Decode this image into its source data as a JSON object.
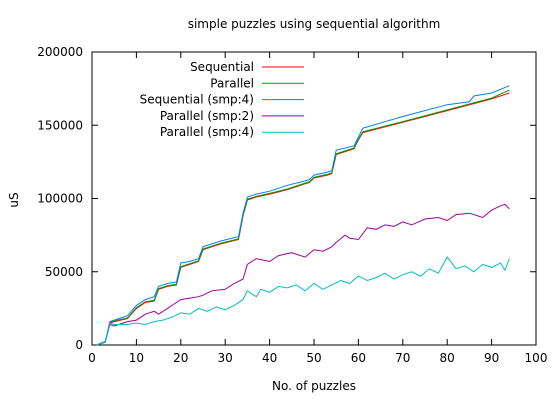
{
  "chart_data": {
    "type": "line",
    "title": "simple puzzles using sequential algorithm",
    "xlabel": "No. of puzzles",
    "ylabel": "uS",
    "xlim": [
      0,
      100
    ],
    "ylim": [
      0,
      200000
    ],
    "xticks": [
      "0",
      "10",
      "20",
      "30",
      "40",
      "50",
      "60",
      "70",
      "80",
      "90",
      "100"
    ],
    "yticks": [
      "0",
      "50000",
      "100000",
      "150000",
      "200000"
    ],
    "grid": false,
    "legend": "top-left",
    "series": [
      {
        "name": "Sequential",
        "color": "#ff0000",
        "x": [
          1,
          3,
          4,
          5,
          8,
          10,
          12,
          14,
          15,
          17,
          19,
          20,
          22,
          24,
          25,
          27,
          29,
          33,
          34,
          35,
          37,
          40,
          44,
          48,
          49,
          50,
          53,
          54,
          55,
          59,
          60,
          61,
          70,
          80,
          90,
          94
        ],
        "y": [
          0,
          2000,
          15000,
          16000,
          18000,
          25000,
          29000,
          30000,
          38000,
          40000,
          41000,
          53000,
          55000,
          57000,
          65000,
          67000,
          69000,
          72000,
          88000,
          99000,
          101000,
          103000,
          106000,
          110000,
          111000,
          114000,
          116000,
          117000,
          130000,
          134000,
          140000,
          145000,
          152000,
          160000,
          168000,
          172000
        ]
      },
      {
        "name": "Parallel",
        "color": "#00a000",
        "x": [
          1,
          3,
          4,
          5,
          8,
          10,
          12,
          14,
          15,
          17,
          19,
          20,
          22,
          24,
          25,
          27,
          29,
          33,
          34,
          35,
          37,
          40,
          44,
          48,
          49,
          50,
          53,
          54,
          55,
          59,
          60,
          61,
          70,
          80,
          90,
          94
        ],
        "y": [
          0,
          2000,
          15500,
          16500,
          18500,
          25500,
          29500,
          30500,
          38500,
          40500,
          41500,
          53500,
          55500,
          57500,
          65500,
          67500,
          69500,
          72500,
          88500,
          99500,
          101500,
          103500,
          106500,
          110500,
          111500,
          114500,
          116500,
          117500,
          130500,
          134500,
          140500,
          145500,
          152500,
          160500,
          168500,
          174000
        ]
      },
      {
        "name": "Sequential (smp:4)",
        "color": "#0080ff",
        "x": [
          1,
          3,
          4,
          5,
          8,
          10,
          12,
          14,
          15,
          17,
          19,
          20,
          22,
          24,
          25,
          27,
          29,
          33,
          34,
          35,
          37,
          40,
          44,
          48,
          49,
          50,
          53,
          54,
          55,
          59,
          60,
          61,
          70,
          80,
          85,
          86,
          90,
          94
        ],
        "y": [
          0,
          2500,
          16000,
          17000,
          20000,
          27000,
          31000,
          33000,
          40000,
          42000,
          43000,
          56000,
          57000,
          59000,
          67000,
          69000,
          71000,
          74000,
          90000,
          101000,
          103000,
          105000,
          109000,
          112000,
          113000,
          116000,
          118000,
          119000,
          133000,
          136000,
          142000,
          148000,
          156000,
          164000,
          166000,
          170000,
          172000,
          177000
        ]
      },
      {
        "name": "Parallel (smp:2)",
        "color": "#a000a0",
        "x": [
          1,
          3,
          4,
          5,
          8,
          10,
          12,
          14,
          15,
          17,
          19,
          20,
          22,
          24,
          25,
          27,
          30,
          32,
          34,
          35,
          37,
          40,
          42,
          45,
          48,
          50,
          52,
          54,
          55,
          57,
          58,
          60,
          62,
          64,
          66,
          68,
          70,
          72,
          75,
          78,
          80,
          82,
          85,
          88,
          90,
          92,
          93,
          94
        ],
        "y": [
          0,
          2000,
          14000,
          13000,
          16000,
          17000,
          21000,
          23000,
          21000,
          25000,
          29000,
          31000,
          32000,
          33000,
          34000,
          37000,
          38000,
          42000,
          45000,
          55000,
          59000,
          57000,
          61000,
          63000,
          60000,
          65000,
          64000,
          67000,
          70000,
          75000,
          73000,
          72000,
          80000,
          79000,
          82000,
          81000,
          84000,
          82000,
          86000,
          87000,
          85000,
          89000,
          90000,
          87000,
          92000,
          95000,
          96000,
          93000
        ]
      },
      {
        "name": "Parallel (smp:4)",
        "color": "#00c0c0",
        "x": [
          1,
          3,
          4,
          5,
          8,
          10,
          12,
          14,
          16,
          18,
          20,
          22,
          24,
          26,
          28,
          30,
          32,
          34,
          35,
          37,
          38,
          40,
          42,
          44,
          46,
          48,
          50,
          52,
          54,
          56,
          58,
          60,
          62,
          64,
          66,
          68,
          70,
          72,
          74,
          76,
          78,
          80,
          82,
          84,
          86,
          88,
          90,
          92,
          93,
          94
        ],
        "y": [
          0,
          2000,
          15000,
          14000,
          14000,
          15000,
          14000,
          16000,
          17000,
          19000,
          22000,
          21000,
          25000,
          23000,
          26000,
          24000,
          27000,
          31000,
          37000,
          33000,
          38000,
          36000,
          40000,
          39000,
          41000,
          37000,
          42000,
          38000,
          41000,
          44000,
          42000,
          47000,
          44000,
          46000,
          49000,
          45000,
          48000,
          50000,
          47000,
          52000,
          49000,
          60000,
          52000,
          54000,
          50000,
          55000,
          53000,
          56000,
          51000,
          59000
        ]
      }
    ]
  }
}
